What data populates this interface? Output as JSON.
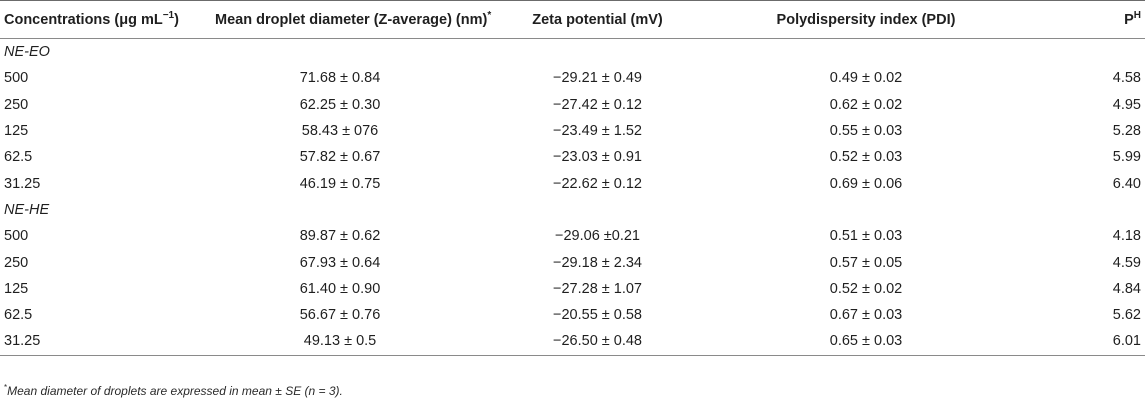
{
  "table": {
    "headers": [
      {
        "text": "Concentrations (μg mL",
        "sup": "−1",
        "tail": ")"
      },
      {
        "text": "Mean droplet diameter (Z-average) (nm)",
        "sup": "*",
        "tail": ""
      },
      {
        "text": "Zeta potential (mV)",
        "sup": "",
        "tail": ""
      },
      {
        "text": "Polydispersity index (PDI)",
        "sup": "",
        "tail": ""
      },
      {
        "text": "P",
        "sup": "H",
        "tail": ""
      }
    ],
    "groups": [
      {
        "name": "NE-EO",
        "rows": [
          [
            "500",
            "71.68 ± 0.84",
            "−29.21 ± 0.49",
            "0.49 ± 0.02",
            "4.58"
          ],
          [
            "250",
            "62.25 ± 0.30",
            "−27.42 ± 0.12",
            "0.62 ± 0.02",
            "4.95"
          ],
          [
            "125",
            "58.43 ± 076",
            "−23.49 ± 1.52",
            "0.55 ± 0.03",
            "5.28"
          ],
          [
            "62.5",
            "57.82 ± 0.67",
            "−23.03 ± 0.91",
            "0.52 ± 0.03",
            "5.99"
          ],
          [
            "31.25",
            "46.19 ± 0.75",
            "−22.62 ± 0.12",
            "0.69 ± 0.06",
            "6.40"
          ]
        ]
      },
      {
        "name": "NE-HE",
        "rows": [
          [
            "500",
            "89.87 ± 0.62",
            "−29.06 ±0.21",
            "0.51 ± 0.03",
            "4.18"
          ],
          [
            "250",
            "67.93 ± 0.64",
            "−29.18 ± 2.34",
            "0.57 ± 0.05",
            "4.59"
          ],
          [
            "125",
            "61.40 ± 0.90",
            "−27.28 ± 1.07",
            "0.52 ± 0.02",
            "4.84"
          ],
          [
            "62.5",
            "56.67 ± 0.76",
            "−20.55 ± 0.58",
            "0.67 ± 0.03",
            "5.62"
          ],
          [
            "31.25",
            "49.13 ± 0.5",
            "−26.50 ± 0.48",
            "0.65 ± 0.03",
            "6.01"
          ]
        ]
      }
    ]
  },
  "footnote": {
    "mark": "*",
    "text": "Mean diameter of droplets are expressed in mean ± SE (n = 3)."
  }
}
